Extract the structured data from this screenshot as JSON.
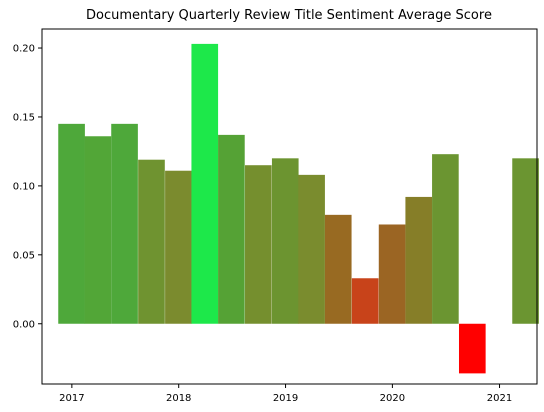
{
  "chart_data": {
    "type": "bar",
    "title": "Documentary Quarterly Review Title Sentiment Average Score",
    "xlabel": "",
    "ylabel": "",
    "x_axis": {
      "type": "time",
      "range": [
        "2016-09-21",
        "2021-05-09"
      ],
      "tick_labels": [
        "2017",
        "2018",
        "2019",
        "2020",
        "2021"
      ]
    },
    "y_axis": {
      "range": [
        -0.0437,
        0.2138
      ],
      "tick_values": [
        0.0,
        0.05,
        0.1,
        0.15,
        0.2
      ],
      "tick_labels": [
        "0.00",
        "0.05",
        "0.10",
        "0.15",
        "0.20"
      ]
    },
    "grid": false,
    "legend": "none",
    "bar_width_days": 91,
    "series": [
      {
        "bars": [
          {
            "x": "2016-12-31",
            "value": 0.145,
            "color": "#4ea83a"
          },
          {
            "x": "2017-03-31",
            "value": 0.136,
            "color": "#52a637"
          },
          {
            "x": "2017-06-30",
            "value": 0.145,
            "color": "#4ea83a"
          },
          {
            "x": "2017-09-30",
            "value": 0.119,
            "color": "#6f9330"
          },
          {
            "x": "2017-12-31",
            "value": 0.111,
            "color": "#7b8b2e"
          },
          {
            "x": "2018-03-31",
            "value": 0.203,
            "color": "#1de84a"
          },
          {
            "x": "2018-06-30",
            "value": 0.137,
            "color": "#55a235"
          },
          {
            "x": "2018-09-30",
            "value": 0.115,
            "color": "#758f2e"
          },
          {
            "x": "2018-12-31",
            "value": 0.12,
            "color": "#6c9430"
          },
          {
            "x": "2019-03-31",
            "value": 0.108,
            "color": "#7a8c2e"
          },
          {
            "x": "2019-06-30",
            "value": 0.079,
            "color": "#986a22"
          },
          {
            "x": "2019-09-30",
            "value": 0.033,
            "color": "#c8431a"
          },
          {
            "x": "2019-12-31",
            "value": 0.072,
            "color": "#9b6523"
          },
          {
            "x": "2020-03-31",
            "value": 0.092,
            "color": "#867e28"
          },
          {
            "x": "2020-06-30",
            "value": 0.123,
            "color": "#6b9531"
          },
          {
            "x": "2020-09-30",
            "value": -0.036,
            "color": "#ff0000"
          },
          {
            "x": "2021-03-31",
            "value": 0.12,
            "color": "#6b9531"
          }
        ]
      }
    ]
  }
}
